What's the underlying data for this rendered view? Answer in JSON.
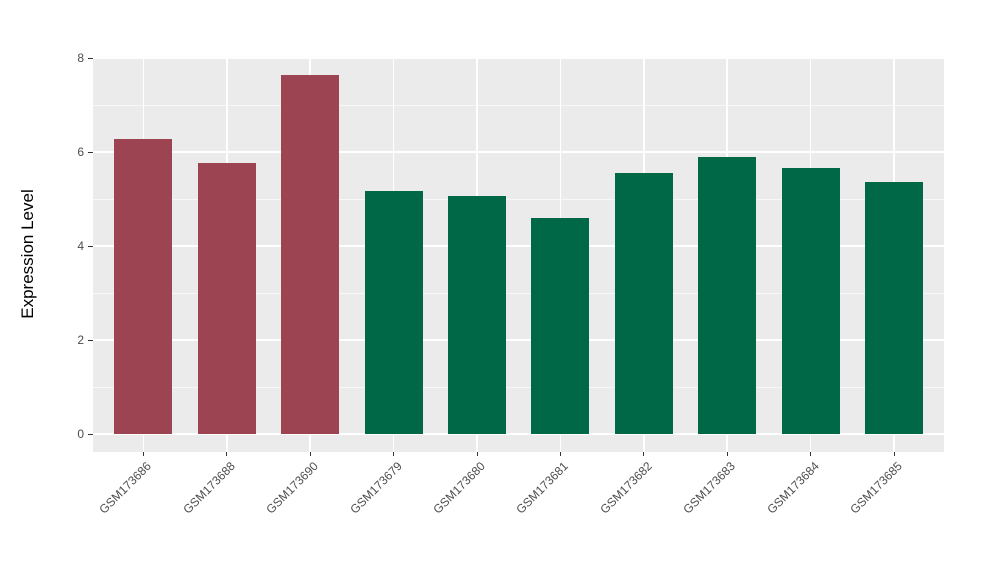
{
  "chart_data": {
    "type": "bar",
    "title": "",
    "xlabel": "",
    "ylabel": "Expression Level",
    "categories": [
      "GSM173686",
      "GSM173688",
      "GSM173690",
      "GSM173679",
      "GSM173680",
      "GSM173681",
      "GSM173682",
      "GSM173683",
      "GSM173684",
      "GSM173685"
    ],
    "values": [
      6.28,
      5.76,
      7.64,
      5.16,
      5.06,
      4.59,
      5.55,
      5.89,
      5.66,
      5.37
    ],
    "bar_colors": [
      "#9C4451",
      "#9C4451",
      "#9C4451",
      "#006747",
      "#006747",
      "#006747",
      "#006747",
      "#006747",
      "#006747",
      "#006747"
    ],
    "group_colors": {
      "red_group": "#9C4451",
      "green_group": "#006747"
    },
    "ylim": [
      0,
      8
    ],
    "yticks": [
      0,
      2,
      4,
      6,
      8
    ],
    "yticks_minor": [
      1,
      3,
      5,
      7
    ],
    "grid": true,
    "legend": "none",
    "panel_bg": "#EBEBEB",
    "grid_color": "#FFFFFF",
    "x_label_angle": 45
  }
}
